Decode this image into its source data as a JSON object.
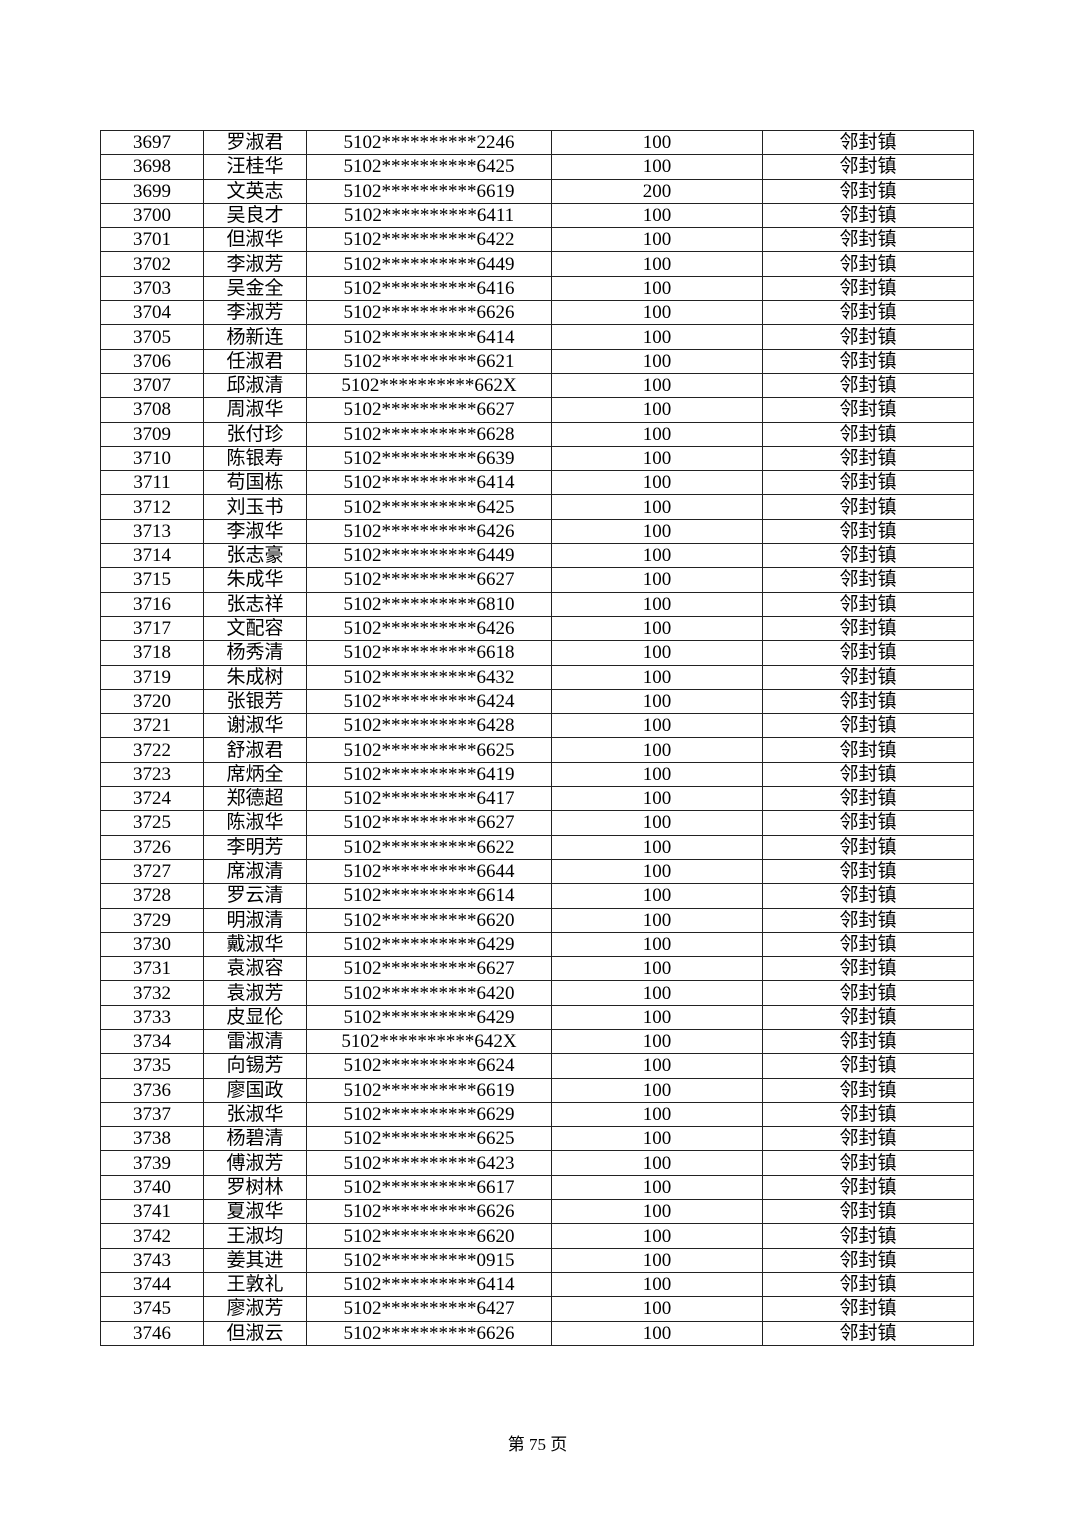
{
  "table": {
    "rows": [
      [
        "3697",
        "罗淑君",
        "5102**********2246",
        "100",
        "邻封镇"
      ],
      [
        "3698",
        "汪桂华",
        "5102**********6425",
        "100",
        "邻封镇"
      ],
      [
        "3699",
        "文英志",
        "5102**********6619",
        "200",
        "邻封镇"
      ],
      [
        "3700",
        "吴良才",
        "5102**********6411",
        "100",
        "邻封镇"
      ],
      [
        "3701",
        "但淑华",
        "5102**********6422",
        "100",
        "邻封镇"
      ],
      [
        "3702",
        "李淑芳",
        "5102**********6449",
        "100",
        "邻封镇"
      ],
      [
        "3703",
        "吴金全",
        "5102**********6416",
        "100",
        "邻封镇"
      ],
      [
        "3704",
        "李淑芳",
        "5102**********6626",
        "100",
        "邻封镇"
      ],
      [
        "3705",
        "杨新连",
        "5102**********6414",
        "100",
        "邻封镇"
      ],
      [
        "3706",
        "任淑君",
        "5102**********6621",
        "100",
        "邻封镇"
      ],
      [
        "3707",
        "邱淑清",
        "5102**********662X",
        "100",
        "邻封镇"
      ],
      [
        "3708",
        "周淑华",
        "5102**********6627",
        "100",
        "邻封镇"
      ],
      [
        "3709",
        "张付珍",
        "5102**********6628",
        "100",
        "邻封镇"
      ],
      [
        "3710",
        "陈银寿",
        "5102**********6639",
        "100",
        "邻封镇"
      ],
      [
        "3711",
        "苟国栋",
        "5102**********6414",
        "100",
        "邻封镇"
      ],
      [
        "3712",
        "刘玉书",
        "5102**********6425",
        "100",
        "邻封镇"
      ],
      [
        "3713",
        "李淑华",
        "5102**********6426",
        "100",
        "邻封镇"
      ],
      [
        "3714",
        "张志豪",
        "5102**********6449",
        "100",
        "邻封镇"
      ],
      [
        "3715",
        "朱成华",
        "5102**********6627",
        "100",
        "邻封镇"
      ],
      [
        "3716",
        "张志祥",
        "5102**********6810",
        "100",
        "邻封镇"
      ],
      [
        "3717",
        "文配容",
        "5102**********6426",
        "100",
        "邻封镇"
      ],
      [
        "3718",
        "杨秀清",
        "5102**********6618",
        "100",
        "邻封镇"
      ],
      [
        "3719",
        "朱成树",
        "5102**********6432",
        "100",
        "邻封镇"
      ],
      [
        "3720",
        "张银芳",
        "5102**********6424",
        "100",
        "邻封镇"
      ],
      [
        "3721",
        "谢淑华",
        "5102**********6428",
        "100",
        "邻封镇"
      ],
      [
        "3722",
        "舒淑君",
        "5102**********6625",
        "100",
        "邻封镇"
      ],
      [
        "3723",
        "席炳全",
        "5102**********6419",
        "100",
        "邻封镇"
      ],
      [
        "3724",
        "郑德超",
        "5102**********6417",
        "100",
        "邻封镇"
      ],
      [
        "3725",
        "陈淑华",
        "5102**********6627",
        "100",
        "邻封镇"
      ],
      [
        "3726",
        "李明芳",
        "5102**********6622",
        "100",
        "邻封镇"
      ],
      [
        "3727",
        "席淑清",
        "5102**********6644",
        "100",
        "邻封镇"
      ],
      [
        "3728",
        "罗云清",
        "5102**********6614",
        "100",
        "邻封镇"
      ],
      [
        "3729",
        "明淑清",
        "5102**********6620",
        "100",
        "邻封镇"
      ],
      [
        "3730",
        "戴淑华",
        "5102**********6429",
        "100",
        "邻封镇"
      ],
      [
        "3731",
        "袁淑容",
        "5102**********6627",
        "100",
        "邻封镇"
      ],
      [
        "3732",
        "袁淑芳",
        "5102**********6420",
        "100",
        "邻封镇"
      ],
      [
        "3733",
        "皮显伦",
        "5102**********6429",
        "100",
        "邻封镇"
      ],
      [
        "3734",
        "雷淑清",
        "5102**********642X",
        "100",
        "邻封镇"
      ],
      [
        "3735",
        "向锡芳",
        "5102**********6624",
        "100",
        "邻封镇"
      ],
      [
        "3736",
        "廖国政",
        "5102**********6619",
        "100",
        "邻封镇"
      ],
      [
        "3737",
        "张淑华",
        "5102**********6629",
        "100",
        "邻封镇"
      ],
      [
        "3738",
        "杨碧清",
        "5102**********6625",
        "100",
        "邻封镇"
      ],
      [
        "3739",
        "傅淑芳",
        "5102**********6423",
        "100",
        "邻封镇"
      ],
      [
        "3740",
        "罗树林",
        "5102**********6617",
        "100",
        "邻封镇"
      ],
      [
        "3741",
        "夏淑华",
        "5102**********6626",
        "100",
        "邻封镇"
      ],
      [
        "3742",
        "王淑均",
        "5102**********6620",
        "100",
        "邻封镇"
      ],
      [
        "3743",
        "姜其进",
        "5102**********0915",
        "100",
        "邻封镇"
      ],
      [
        "3744",
        "王敦礼",
        "5102**********6414",
        "100",
        "邻封镇"
      ],
      [
        "3745",
        "廖淑芳",
        "5102**********6427",
        "100",
        "邻封镇"
      ],
      [
        "3746",
        "但淑云",
        "5102**********6626",
        "100",
        "邻封镇"
      ]
    ]
  },
  "footer": {
    "page_label": "第 75 页"
  }
}
